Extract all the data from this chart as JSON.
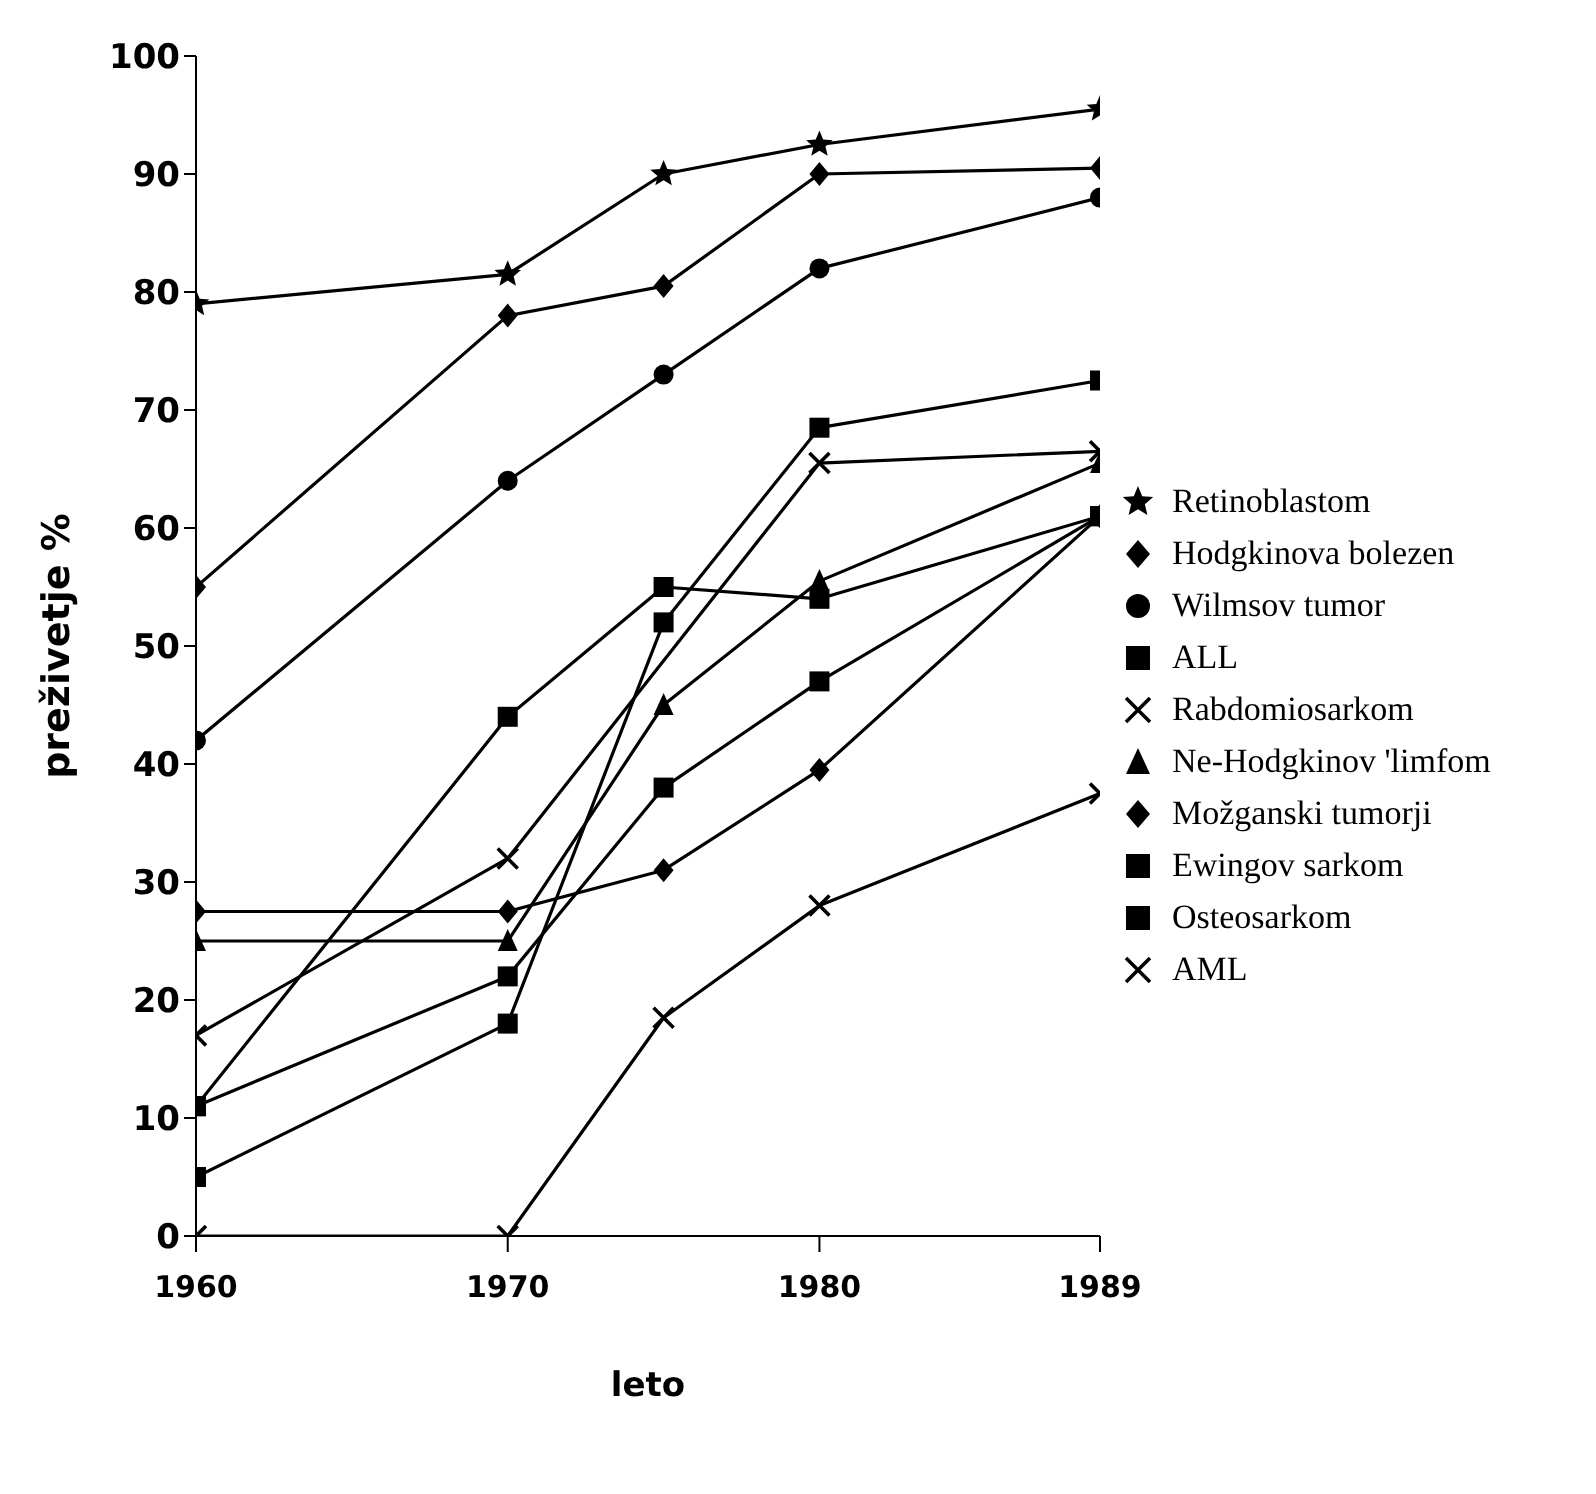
{
  "chart_data": {
    "type": "line",
    "xlabel": "leto",
    "ylabel": "preživetje %",
    "x": [
      1960,
      1970,
      1975,
      1980,
      1989
    ],
    "xlim": [
      1960,
      1989
    ],
    "xticks": [
      1960,
      1970,
      1980,
      1989
    ],
    "ylim": [
      0,
      100
    ],
    "yticks": [
      0,
      10,
      20,
      30,
      40,
      50,
      60,
      70,
      80,
      90,
      100
    ],
    "grid": false,
    "legend": "right",
    "line_style": "solid",
    "series": [
      {
        "name": "Retinoblastom",
        "color": "#000000",
        "marker": "star",
        "values": [
          79,
          81.5,
          90,
          92.5,
          95.5
        ]
      },
      {
        "name": "Hodgkinova bolezen",
        "color": "#000000",
        "marker": "diamond",
        "values": [
          55,
          78,
          80.5,
          90,
          90.5
        ]
      },
      {
        "name": "Wilmsov tumor",
        "color": "#000000",
        "marker": "circle",
        "values": [
          42,
          64,
          73,
          82,
          88
        ]
      },
      {
        "name": "ALL",
        "color": "#000000",
        "marker": "square",
        "values": [
          5,
          18,
          52,
          68.5,
          72.5
        ]
      },
      {
        "name": "Rabdomiosarkom",
        "color": "#000000",
        "marker": "cross",
        "values": [
          17,
          32,
          null,
          65.5,
          66.5
        ]
      },
      {
        "name": "Ne-Hodgkinov 'limfom",
        "color": "#000000",
        "marker": "triangle",
        "values": [
          25,
          25,
          45,
          55.5,
          65.5
        ]
      },
      {
        "name": "Možganski tumorji",
        "color": "#000000",
        "marker": "diamond",
        "values": [
          27.5,
          27.5,
          31,
          39.5,
          61
        ]
      },
      {
        "name": "Ewingov sarkom",
        "color": "#000000",
        "marker": "square",
        "values": [
          11,
          44,
          55,
          54,
          61
        ]
      },
      {
        "name": "Osteosarkom",
        "color": "#000000",
        "marker": "square",
        "values": [
          11,
          22,
          38,
          47,
          61
        ]
      },
      {
        "name": "AML",
        "color": "#000000",
        "marker": "cross",
        "values": [
          0,
          0,
          18.5,
          28,
          37.5
        ]
      }
    ]
  }
}
